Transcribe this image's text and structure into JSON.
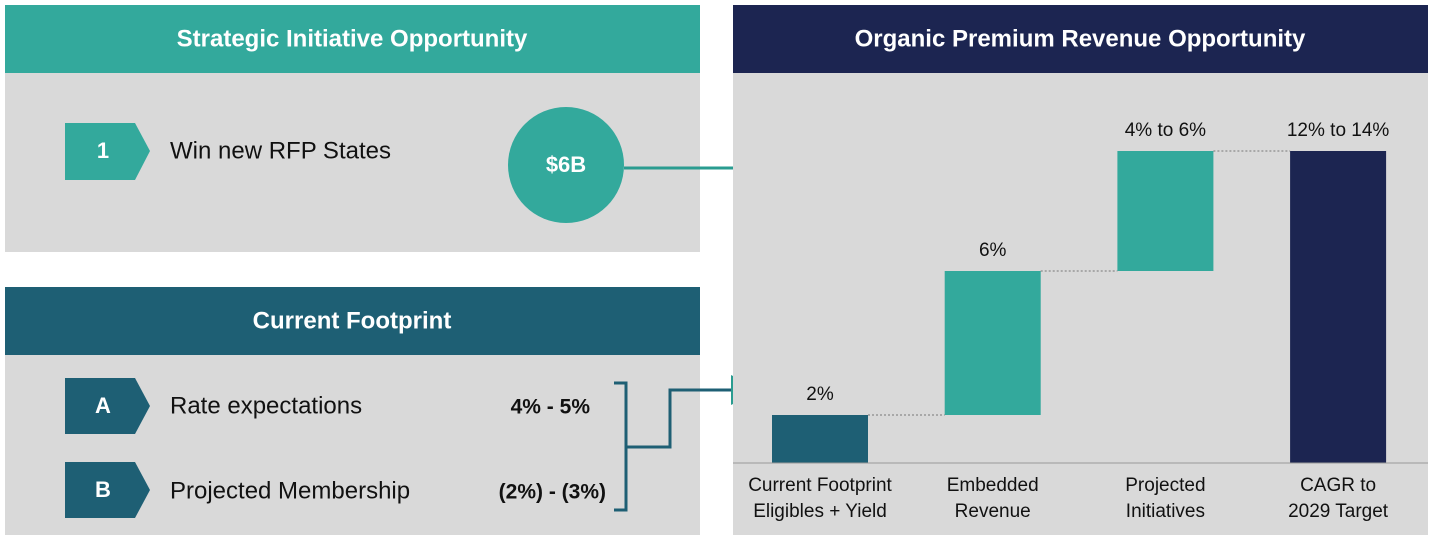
{
  "left_top": {
    "title": "Strategic Initiative Opportunity",
    "item": {
      "marker": "1",
      "label": "Win new RFP States"
    },
    "bubble": "$6B"
  },
  "left_bottom": {
    "title": "Current Footprint",
    "items": [
      {
        "marker": "A",
        "label": "Rate expectations",
        "value": "4% - 5%"
      },
      {
        "marker": "B",
        "label": "Projected Membership",
        "value": "(2%) - (3%)"
      }
    ]
  },
  "chart_data": {
    "type": "waterfall",
    "title": "Organic Premium Revenue Opportunity",
    "categories": [
      [
        "Current Footprint",
        "Eligibles + Yield"
      ],
      [
        "Embedded",
        "Revenue"
      ],
      [
        "Projected",
        "Initiatives"
      ],
      [
        "CAGR to",
        "2029 Target"
      ]
    ],
    "values": [
      2,
      6,
      [
        4,
        6
      ],
      [
        12,
        14
      ]
    ],
    "value_labels": [
      "2%",
      "6%",
      "4% to 6%",
      "12% to 14%"
    ],
    "colors": [
      "#1e5f74",
      "#33a99c",
      "#33a99c",
      "#1c2551"
    ],
    "total_last": true
  }
}
